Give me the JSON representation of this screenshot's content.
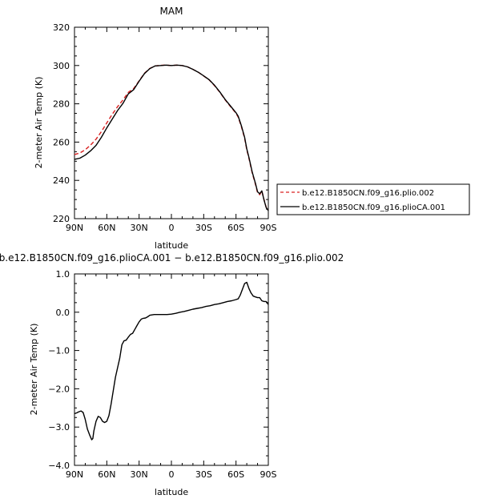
{
  "colors": {
    "plio002": "#d92020",
    "plioCA001": "#000000"
  },
  "chart_data": [
    {
      "type": "line",
      "title": "MAM",
      "xlabel": "latitude",
      "ylabel": "2-meter Air Temp (K)",
      "xlim": [
        90,
        -90
      ],
      "ylim": [
        220,
        320
      ],
      "xticks": [
        90,
        60,
        30,
        0,
        -30,
        -60,
        -90
      ],
      "xtick_labels": [
        "90N",
        "60N",
        "30N",
        "0",
        "30S",
        "60S",
        "90S"
      ],
      "yticks": [
        220,
        240,
        260,
        280,
        300,
        320
      ],
      "ytick_labels": [
        "220",
        "240",
        "260",
        "280",
        "300",
        "320"
      ],
      "legend_position": "right",
      "series": [
        {
          "name": "b.e12.B1850CN.f09_g16.plio.002",
          "style": "dashed",
          "color": "#d92020",
          "x": [
            90,
            85,
            80,
            75,
            70,
            65,
            60,
            55,
            50,
            45,
            40,
            35,
            30,
            25,
            20,
            15,
            10,
            5,
            0,
            -5,
            -10,
            -15,
            -20,
            -25,
            -30,
            -35,
            -40,
            -45,
            -50,
            -55,
            -60,
            -62,
            -65,
            -68,
            -70,
            -72,
            -75,
            -78,
            -80,
            -82,
            -84,
            -86,
            -88,
            -90
          ],
          "y": [
            253.5,
            254.3,
            256.0,
            258.5,
            261.5,
            265.5,
            270.0,
            274.5,
            278.5,
            282.0,
            286.0,
            288.0,
            292.0,
            296.0,
            298.5,
            299.8,
            300.1,
            300.2,
            300.0,
            300.2,
            300.0,
            299.3,
            298.0,
            296.5,
            294.5,
            292.5,
            289.5,
            286.0,
            282.0,
            278.5,
            275.0,
            273.0,
            268.0,
            262.0,
            256.0,
            251.5,
            244.0,
            238.0,
            233.5,
            232.5,
            234.5,
            230.0,
            226.0,
            224.5
          ]
        },
        {
          "name": "b.e12.B1850CN.f09_g16.plioCA.001",
          "style": "solid",
          "color": "#000000",
          "x": [
            90,
            85,
            80,
            75,
            70,
            65,
            60,
            55,
            50,
            45,
            40,
            35,
            30,
            25,
            20,
            15,
            10,
            5,
            0,
            -5,
            -10,
            -15,
            -20,
            -25,
            -30,
            -35,
            -40,
            -45,
            -50,
            -55,
            -60,
            -62,
            -65,
            -68,
            -70,
            -72,
            -75,
            -78,
            -80,
            -82,
            -84,
            -86,
            -88,
            -90
          ],
          "y": [
            251.0,
            251.6,
            253.2,
            255.5,
            258.3,
            262.5,
            267.4,
            272.0,
            276.5,
            280.2,
            285.2,
            287.4,
            291.8,
            295.8,
            298.4,
            299.8,
            300.0,
            300.2,
            300.0,
            300.2,
            300.0,
            299.3,
            298.0,
            296.5,
            294.6,
            292.6,
            289.7,
            286.2,
            282.2,
            278.8,
            275.3,
            273.5,
            268.5,
            262.5,
            256.5,
            252.0,
            244.5,
            238.5,
            234.0,
            233.0,
            234.5,
            229.8,
            225.8,
            224.2
          ]
        }
      ]
    },
    {
      "type": "line",
      "title": "b.e12.B1850CN.f09_g16.plioCA.001 − b.e12.B1850CN.f09_g16.plio.002",
      "xlabel": "latitude",
      "ylabel": "2-meter Air Temp (K)",
      "xlim": [
        90,
        -90
      ],
      "ylim": [
        -4.0,
        1.0
      ],
      "xticks": [
        90,
        60,
        30,
        0,
        -30,
        -60,
        -90
      ],
      "xtick_labels": [
        "90N",
        "60N",
        "30N",
        "0",
        "30S",
        "60S",
        "90S"
      ],
      "yticks": [
        -4.0,
        -3.0,
        -2.0,
        -1.0,
        0.0,
        1.0
      ],
      "ytick_labels": [
        "−4.0",
        "−3.0",
        "−2.0",
        "−1.0",
        "0.0",
        "1.0"
      ],
      "series": [
        {
          "name": "",
          "style": "solid",
          "color": "#000000",
          "x": [
            90,
            88,
            86,
            84,
            82,
            80,
            78,
            76,
            74,
            73,
            72,
            70,
            68,
            66,
            64,
            62,
            60,
            58,
            56,
            54,
            52,
            50,
            48,
            46,
            44,
            42,
            40,
            38,
            36,
            34,
            32,
            30,
            28,
            26,
            24,
            22,
            20,
            16,
            12,
            8,
            4,
            0,
            -4,
            -8,
            -12,
            -16,
            -20,
            -24,
            -28,
            -32,
            -36,
            -40,
            -44,
            -48,
            -52,
            -56,
            -60,
            -62,
            -64,
            -66,
            -68,
            -70,
            -72,
            -74,
            -76,
            -78,
            -80,
            -82,
            -84,
            -86,
            -88,
            -90
          ],
          "y": [
            -2.65,
            -2.63,
            -2.6,
            -2.58,
            -2.62,
            -2.8,
            -3.05,
            -3.2,
            -3.33,
            -3.3,
            -3.1,
            -2.85,
            -2.72,
            -2.75,
            -2.85,
            -2.88,
            -2.85,
            -2.7,
            -2.4,
            -2.05,
            -1.7,
            -1.45,
            -1.2,
            -0.85,
            -0.75,
            -0.73,
            -0.65,
            -0.58,
            -0.55,
            -0.45,
            -0.35,
            -0.25,
            -0.18,
            -0.16,
            -0.15,
            -0.12,
            -0.08,
            -0.06,
            -0.06,
            -0.06,
            -0.06,
            -0.05,
            -0.03,
            0.0,
            0.02,
            0.05,
            0.08,
            0.1,
            0.12,
            0.15,
            0.17,
            0.2,
            0.22,
            0.25,
            0.28,
            0.3,
            0.33,
            0.35,
            0.45,
            0.6,
            0.75,
            0.78,
            0.62,
            0.5,
            0.42,
            0.4,
            0.38,
            0.38,
            0.3,
            0.28,
            0.28,
            0.2
          ]
        }
      ]
    }
  ]
}
